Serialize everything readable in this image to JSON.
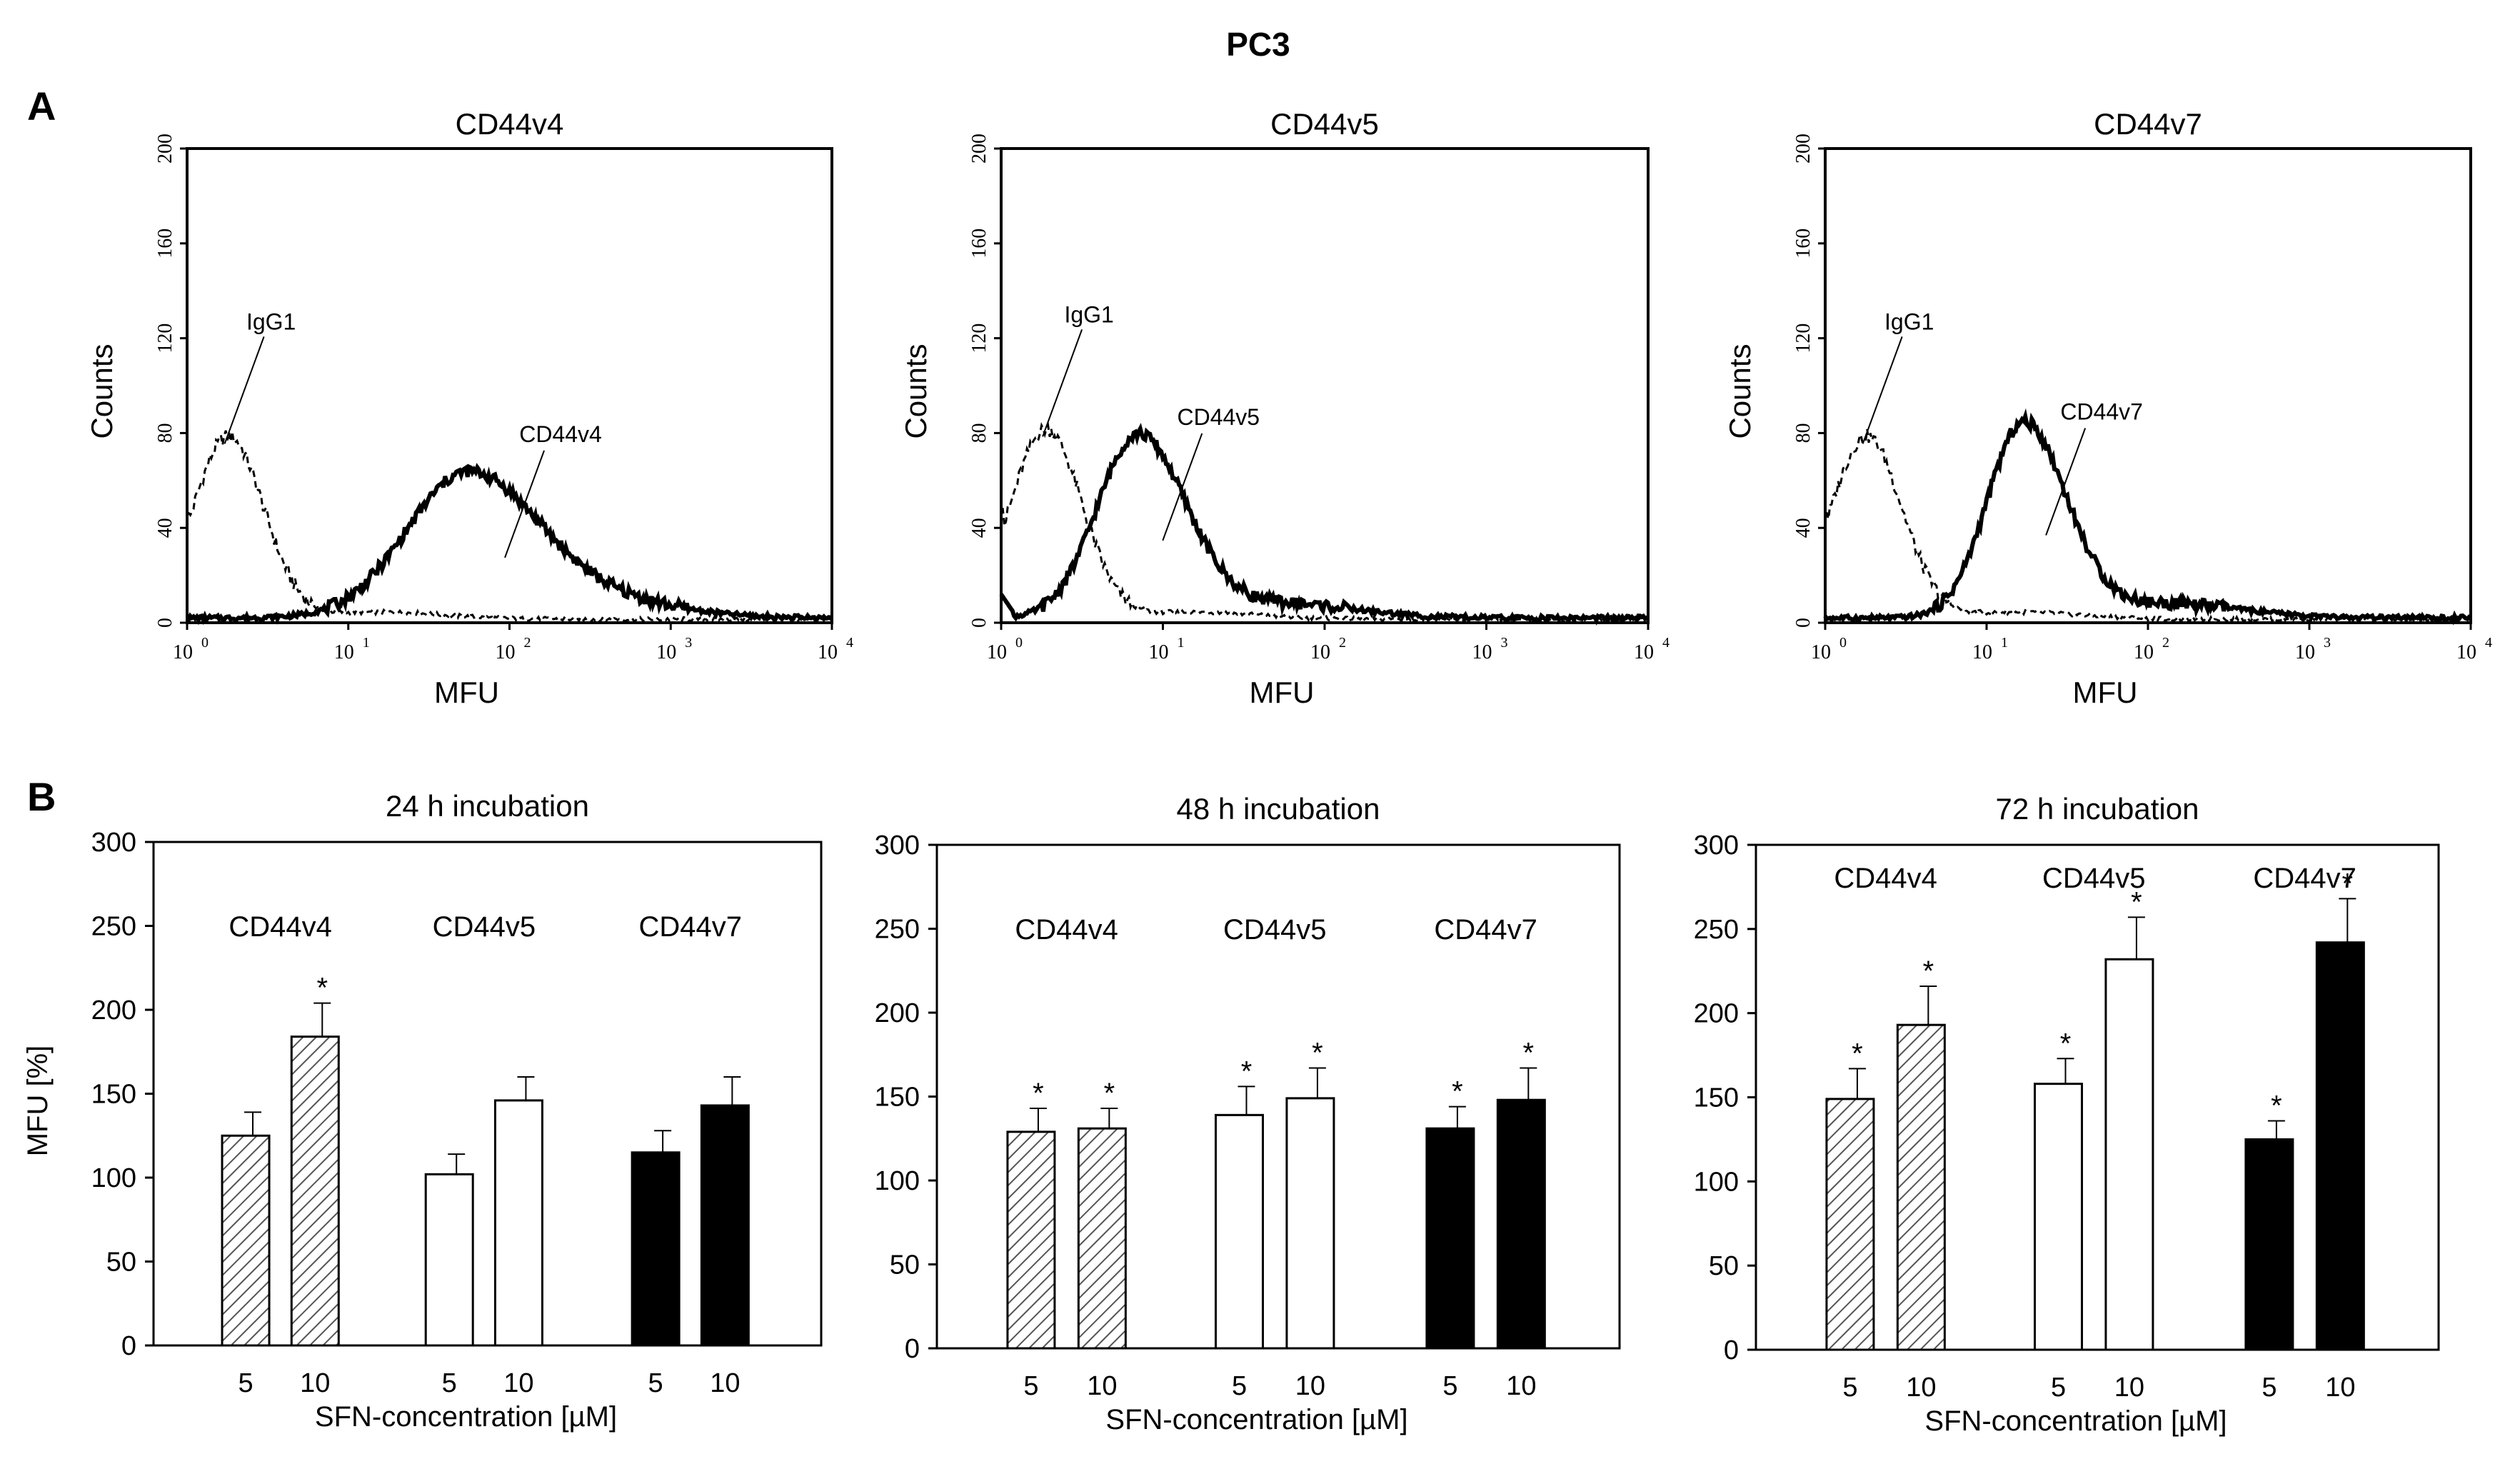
{
  "title": "PC3",
  "panel_a_letter": "A",
  "panel_b_letter": "B",
  "histograms": [
    {
      "title": "CD44v4",
      "isotype_label": "IgG1",
      "marker_label": "CD44v4",
      "isotype_peak_mfu": 1.8,
      "isotype_peak_count": 77,
      "marker_peak_mfu": 55,
      "marker_peak_count": 61,
      "marker_log_width": 0.42
    },
    {
      "title": "CD44v5",
      "isotype_label": "IgG1",
      "marker_label": "CD44v5",
      "isotype_peak_mfu": 1.9,
      "isotype_peak_count": 80,
      "marker_peak_mfu": 7,
      "marker_peak_count": 77,
      "marker_log_width": 0.28
    },
    {
      "title": "CD44v7",
      "isotype_label": "IgG1",
      "marker_label": "CD44v7",
      "isotype_peak_mfu": 1.8,
      "isotype_peak_count": 77,
      "marker_peak_mfu": 17,
      "marker_peak_count": 82,
      "marker_log_width": 0.25
    }
  ],
  "hist_axes": {
    "xlabel": "MFU",
    "ylabel": "Counts",
    "yticks": [
      "0",
      "40",
      "80",
      "120",
      "160",
      "200"
    ],
    "xtick_base": "10",
    "xtick_exponents": [
      "0",
      "1",
      "2",
      "3",
      "4"
    ]
  },
  "chart_data": [
    {
      "type": "bar",
      "title": "24 h incubation",
      "xlabel": "SFN-concentration [µM]",
      "ylabel": "MFU [%]",
      "ylim": [
        0,
        300
      ],
      "yticks": [
        "0",
        "50",
        "100",
        "150",
        "200",
        "250",
        "300"
      ],
      "groups": [
        "CD44v4",
        "CD44v5",
        "CD44v7"
      ],
      "concentrations": [
        "5",
        "10"
      ],
      "series": [
        {
          "name": "CD44v4",
          "style": "hatched",
          "values": [
            125,
            184
          ],
          "errors": [
            14,
            20
          ],
          "significant": [
            false,
            true
          ]
        },
        {
          "name": "CD44v5",
          "style": "white",
          "values": [
            102,
            146
          ],
          "errors": [
            12,
            14
          ],
          "significant": [
            false,
            false
          ]
        },
        {
          "name": "CD44v7",
          "style": "black",
          "values": [
            115,
            143
          ],
          "errors": [
            13,
            17
          ],
          "significant": [
            false,
            false
          ]
        }
      ]
    },
    {
      "type": "bar",
      "title": "48 h incubation",
      "xlabel": "SFN-concentration [µM]",
      "ylabel": "",
      "ylim": [
        0,
        300
      ],
      "yticks": [
        "0",
        "50",
        "100",
        "150",
        "200",
        "250",
        "300"
      ],
      "groups": [
        "CD44v4",
        "CD44v5",
        "CD44v7"
      ],
      "concentrations": [
        "5",
        "10"
      ],
      "series": [
        {
          "name": "CD44v4",
          "style": "hatched",
          "values": [
            129,
            131
          ],
          "errors": [
            14,
            12
          ],
          "significant": [
            true,
            true
          ]
        },
        {
          "name": "CD44v5",
          "style": "white",
          "values": [
            139,
            149
          ],
          "errors": [
            17,
            18
          ],
          "significant": [
            true,
            true
          ]
        },
        {
          "name": "CD44v7",
          "style": "black",
          "values": [
            131,
            148
          ],
          "errors": [
            13,
            19
          ],
          "significant": [
            true,
            true
          ]
        }
      ]
    },
    {
      "type": "bar",
      "title": "72 h incubation",
      "xlabel": "SFN-concentration [µM]",
      "ylabel": "",
      "ylim": [
        0,
        300
      ],
      "yticks": [
        "0",
        "50",
        "100",
        "150",
        "200",
        "250",
        "300"
      ],
      "groups": [
        "CD44v4",
        "CD44v5",
        "CD44v7"
      ],
      "concentrations": [
        "5",
        "10"
      ],
      "series": [
        {
          "name": "CD44v4",
          "style": "hatched",
          "values": [
            149,
            193
          ],
          "errors": [
            18,
            23
          ],
          "significant": [
            true,
            true
          ]
        },
        {
          "name": "CD44v5",
          "style": "white",
          "values": [
            158,
            232
          ],
          "errors": [
            15,
            25
          ],
          "significant": [
            true,
            true
          ]
        },
        {
          "name": "CD44v7",
          "style": "black",
          "values": [
            125,
            242
          ],
          "errors": [
            11,
            26
          ],
          "significant": [
            true,
            true
          ]
        }
      ]
    }
  ],
  "significance_marker": "*"
}
